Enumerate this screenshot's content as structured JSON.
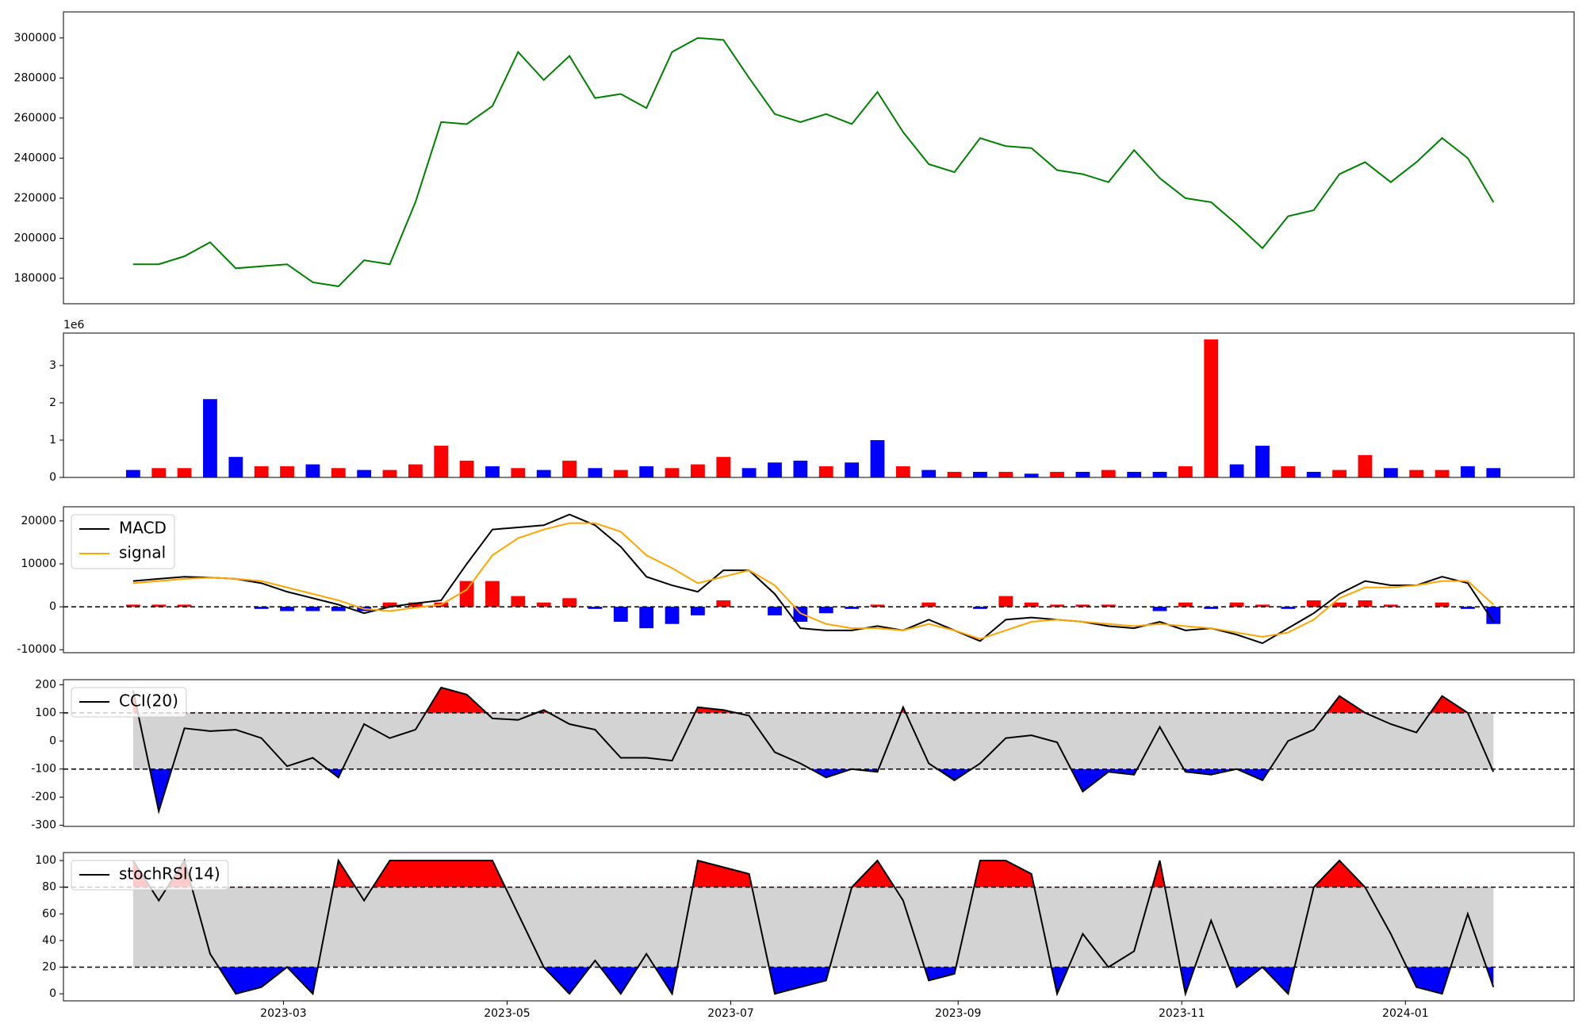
{
  "chart_data": [
    {
      "type": "line",
      "x": [
        18,
        25,
        32,
        39,
        46,
        53,
        60,
        67,
        74,
        81,
        88,
        95,
        102,
        109,
        116,
        123,
        130,
        137,
        144,
        151,
        158,
        165,
        172,
        179,
        186,
        193,
        200,
        207,
        214,
        221,
        228,
        235,
        242,
        249,
        256,
        263,
        270,
        277,
        284,
        291,
        298,
        305,
        312,
        319,
        326,
        333,
        340,
        347,
        354,
        361,
        368,
        375,
        382,
        389
      ],
      "xlim": [
        -1,
        411
      ],
      "ylim": [
        167300,
        313000
      ],
      "yticks": [
        180000,
        200000,
        220000,
        240000,
        260000,
        280000,
        300000
      ],
      "series": [
        {
          "color": "#008000",
          "values": [
            187000,
            187000,
            191000,
            198000,
            185000,
            186000,
            187000,
            178000,
            176000,
            189000,
            187000,
            218000,
            258000,
            257000,
            266000,
            293000,
            279000,
            291000,
            270000,
            272000,
            265000,
            293000,
            300000,
            299000,
            280000,
            262000,
            258000,
            262000,
            257000,
            273000,
            253000,
            237000,
            233000,
            250000,
            246000,
            245000,
            234000,
            232000,
            228000,
            244000,
            230000,
            220000,
            218000,
            207000,
            195000,
            211000,
            214000,
            232000,
            238000,
            228000,
            238000,
            250000,
            240000,
            218000
          ]
        }
      ]
    },
    {
      "type": "bar",
      "x": [
        18,
        25,
        32,
        39,
        46,
        53,
        60,
        67,
        74,
        81,
        88,
        95,
        102,
        109,
        116,
        123,
        130,
        137,
        144,
        151,
        158,
        165,
        172,
        179,
        186,
        193,
        200,
        207,
        214,
        221,
        228,
        235,
        242,
        249,
        256,
        263,
        270,
        277,
        284,
        291,
        298,
        305,
        312,
        319,
        326,
        333,
        340,
        347,
        354,
        361,
        368,
        375,
        382,
        389
      ],
      "xlim": [
        -1,
        411
      ],
      "ylim": [
        0,
        3870000
      ],
      "yticks": [
        0,
        {
          "value": 1000000,
          "label": "1"
        },
        {
          "value": 2000000,
          "label": "2"
        },
        {
          "value": 3000000,
          "label": "3"
        }
      ],
      "y_offset_label": "1e6",
      "values": [
        200000,
        250000,
        250000,
        2100000,
        550000,
        300000,
        300000,
        350000,
        250000,
        200000,
        200000,
        350000,
        850000,
        450000,
        300000,
        250000,
        200000,
        450000,
        250000,
        200000,
        300000,
        250000,
        350000,
        550000,
        250000,
        400000,
        450000,
        300000,
        400000,
        1000000,
        300000,
        200000,
        150000,
        150000,
        150000,
        100000,
        150000,
        150000,
        200000,
        150000,
        150000,
        300000,
        3700000,
        350000,
        850000,
        300000,
        150000,
        200000,
        600000,
        250000,
        200000,
        200000,
        300000,
        250000
      ],
      "colors": [
        "#0000ff",
        "#ff0000",
        "#ff0000",
        "#0000ff",
        "#0000ff",
        "#ff0000",
        "#ff0000",
        "#0000ff",
        "#ff0000",
        "#0000ff",
        "#ff0000",
        "#ff0000",
        "#ff0000",
        "#ff0000",
        "#0000ff",
        "#ff0000",
        "#0000ff",
        "#ff0000",
        "#0000ff",
        "#ff0000",
        "#0000ff",
        "#ff0000",
        "#ff0000",
        "#ff0000",
        "#0000ff",
        "#0000ff",
        "#0000ff",
        "#ff0000",
        "#0000ff",
        "#0000ff",
        "#ff0000",
        "#0000ff",
        "#ff0000",
        "#0000ff",
        "#ff0000",
        "#0000ff",
        "#ff0000",
        "#0000ff",
        "#ff0000",
        "#0000ff",
        "#0000ff",
        "#ff0000",
        "#ff0000",
        "#0000ff",
        "#0000ff",
        "#ff0000",
        "#0000ff",
        "#ff0000",
        "#ff0000",
        "#0000ff",
        "#ff0000",
        "#ff0000",
        "#0000ff",
        "#0000ff"
      ]
    },
    {
      "type": "macd",
      "x": [
        18,
        25,
        32,
        39,
        46,
        53,
        60,
        67,
        74,
        81,
        88,
        95,
        102,
        109,
        116,
        123,
        130,
        137,
        144,
        151,
        158,
        165,
        172,
        179,
        186,
        193,
        200,
        207,
        214,
        221,
        228,
        235,
        242,
        249,
        256,
        263,
        270,
        277,
        284,
        291,
        298,
        305,
        312,
        319,
        326,
        333,
        340,
        347,
        354,
        361,
        368,
        375,
        382,
        389
      ],
      "xlim": [
        -1,
        411
      ],
      "ylim": [
        -10700,
        23300
      ],
      "yticks": [
        -10000,
        0,
        10000,
        20000
      ],
      "hline": 0,
      "histogram": [
        500,
        500,
        500,
        0,
        0,
        -500,
        -1000,
        -1000,
        -1000,
        -1000,
        1000,
        1000,
        1000,
        6000,
        6000,
        2500,
        1000,
        2000,
        -500,
        -3500,
        -5000,
        -4000,
        -2000,
        1500,
        0,
        -2000,
        -3500,
        -1500,
        -500,
        500,
        0,
        1000,
        0,
        -500,
        2500,
        1000,
        500,
        500,
        500,
        0,
        -1000,
        1000,
        -500,
        1000,
        500,
        -500,
        1500,
        1000,
        1500,
        500,
        0,
        1000,
        -500,
        -4000
      ],
      "positive_color": "#ff0000",
      "negative_color": "#0000ff",
      "series": [
        {
          "name": "MACD",
          "color": "#000000",
          "values": [
            6000,
            6500,
            7000,
            6800,
            6500,
            5500,
            3500,
            2000,
            500,
            -1500,
            0,
            800,
            1500,
            10000,
            18000,
            18500,
            19000,
            21500,
            19000,
            14000,
            7000,
            5000,
            3500,
            8500,
            8500,
            3000,
            -5000,
            -5500,
            -5500,
            -4500,
            -5500,
            -3000,
            -5500,
            -8000,
            -3000,
            -2500,
            -3000,
            -3500,
            -4500,
            -5000,
            -3500,
            -5500,
            -5000,
            -6500,
            -8500,
            -5000,
            -1500,
            3000,
            6000,
            5000,
            5000,
            7000,
            5500,
            -3500
          ]
        },
        {
          "name": "signal",
          "color": "#ffa500",
          "values": [
            5500,
            6000,
            6500,
            6800,
            6500,
            6000,
            4500,
            3000,
            1500,
            -500,
            -1000,
            -200,
            500,
            4000,
            12000,
            16000,
            18000,
            19500,
            19500,
            17500,
            12000,
            9000,
            5500,
            7000,
            8500,
            5000,
            -1500,
            -4000,
            -5000,
            -5000,
            -5500,
            -4000,
            -5500,
            -7500,
            -5500,
            -3500,
            -3000,
            -3500,
            -4000,
            -4500,
            -4000,
            -4500,
            -5000,
            -6000,
            -7000,
            -6000,
            -3000,
            2000,
            4500,
            4500,
            5000,
            6000,
            6000,
            500
          ]
        }
      ]
    },
    {
      "type": "oscillator",
      "x": [
        18,
        25,
        32,
        39,
        46,
        53,
        60,
        67,
        74,
        81,
        88,
        95,
        102,
        109,
        116,
        123,
        130,
        137,
        144,
        151,
        158,
        165,
        172,
        179,
        186,
        193,
        200,
        207,
        214,
        221,
        228,
        235,
        242,
        249,
        256,
        263,
        270,
        277,
        284,
        291,
        298,
        305,
        312,
        319,
        326,
        333,
        340,
        347,
        354,
        361,
        368,
        375,
        382,
        389
      ],
      "xlim": [
        -1,
        411
      ],
      "ylim": [
        -304,
        218
      ],
      "yticks": [
        -300,
        -200,
        -100,
        0,
        100,
        200
      ],
      "thresholds": [
        -100,
        100
      ],
      "band_color": "#d3d3d3",
      "upper_color": "#ff0000",
      "lower_color": "#0000ff",
      "series": [
        {
          "name": "CCI(20)",
          "color": "#000000",
          "values": [
            180,
            -250,
            45,
            35,
            40,
            10,
            -90,
            -60,
            -130,
            60,
            10,
            40,
            190,
            165,
            80,
            75,
            110,
            60,
            40,
            -60,
            -60,
            -70,
            120,
            110,
            90,
            -40,
            -80,
            -130,
            -100,
            -110,
            120,
            -80,
            -140,
            -80,
            10,
            20,
            -5,
            -180,
            -110,
            -120,
            50,
            -110,
            -120,
            -100,
            -140,
            0,
            40,
            160,
            100,
            60,
            30,
            160,
            100,
            -110
          ]
        }
      ]
    },
    {
      "type": "oscillator",
      "x": [
        18,
        25,
        32,
        39,
        46,
        53,
        60,
        67,
        74,
        81,
        88,
        95,
        102,
        109,
        116,
        123,
        130,
        137,
        144,
        151,
        158,
        165,
        172,
        179,
        186,
        193,
        200,
        207,
        214,
        221,
        228,
        235,
        242,
        249,
        256,
        263,
        270,
        277,
        284,
        291,
        298,
        305,
        312,
        319,
        326,
        333,
        340,
        347,
        354,
        361,
        368,
        375,
        382,
        389
      ],
      "xlim": [
        -1,
        411
      ],
      "xticks": [
        {
          "value": 59,
          "label": "2023-03"
        },
        {
          "value": 120,
          "label": "2023-05"
        },
        {
          "value": 181,
          "label": "2023-07"
        },
        {
          "value": 243,
          "label": "2023-09"
        },
        {
          "value": 304,
          "label": "2023-11"
        },
        {
          "value": 365,
          "label": "2024-01"
        }
      ],
      "ylim": [
        -5.3,
        106
      ],
      "yticks": [
        0,
        20,
        40,
        60,
        80,
        100
      ],
      "thresholds": [
        20,
        80
      ],
      "band_color": "#d3d3d3",
      "upper_color": "#ff0000",
      "lower_color": "#0000ff",
      "series": [
        {
          "name": "stochRSI(14)",
          "color": "#000000",
          "values": [
            100,
            70,
            100,
            30,
            0,
            5,
            20,
            0,
            100,
            70,
            100,
            100,
            100,
            100,
            100,
            60,
            20,
            0,
            25,
            0,
            30,
            0,
            100,
            95,
            90,
            0,
            5,
            10,
            80,
            100,
            70,
            10,
            15,
            100,
            100,
            90,
            0,
            45,
            20,
            32,
            100,
            0,
            55,
            5,
            20,
            0,
            80,
            100,
            80,
            45,
            5,
            0,
            60,
            5
          ]
        }
      ]
    }
  ]
}
